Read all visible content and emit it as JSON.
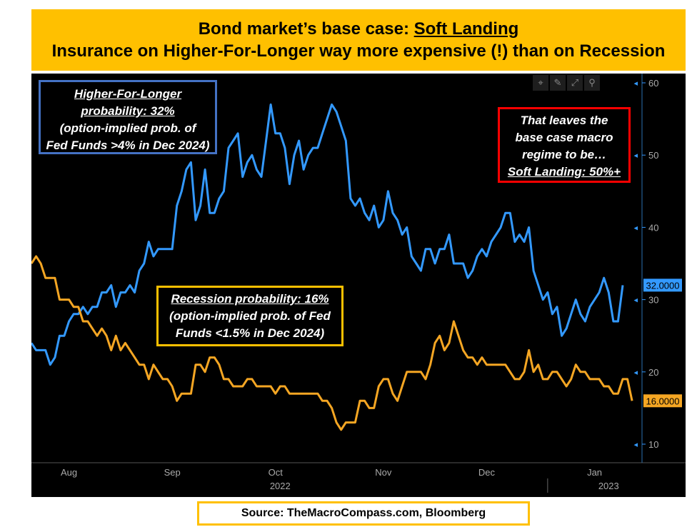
{
  "title": {
    "line1_prefix": "Bond market’s base case: ",
    "line1_emphasis": "Soft Landing",
    "line2": "Insurance on Higher-For-Longer way more expensive (!) than on Recession"
  },
  "annotations": {
    "higher_for_longer": {
      "line1": "Higher-For-Longer",
      "line2": "probability: 32%",
      "line3": "(option-implied prob. of",
      "line4": "Fed Funds >4% in Dec 2024)"
    },
    "recession": {
      "line1": "Recession probability: 16%",
      "line2": "(option-implied prob. of Fed",
      "line3": "Funds <1.5% in Dec 2024)"
    },
    "soft_landing": {
      "line1": "That leaves the",
      "line2": "base case macro",
      "line3": "regime to be…",
      "line4": "Soft Landing: 50%+"
    }
  },
  "toolbar": {
    "icons": [
      "crosshair-icon",
      "pen-icon",
      "expand-icon",
      "zoom-icon"
    ],
    "glyphs": [
      "⌖",
      "✎",
      "⤢",
      "⚲"
    ]
  },
  "source": "Source: TheMacroCompass.com, Bloomberg",
  "colors": {
    "banner": "#FFC000",
    "higher_for_longer": "#3399FF",
    "recession": "#F5A623",
    "hfl_box": "#4472C4",
    "soft_landing_box": "#FF0000",
    "background": "#000000"
  },
  "chart_data": {
    "type": "line",
    "title": "",
    "xlabel": "",
    "ylabel": "",
    "ylim": [
      10,
      60
    ],
    "yticks": [
      10,
      20,
      30,
      40,
      50,
      60
    ],
    "x_tick_labels": [
      "Aug",
      "Sep",
      "Oct",
      "Nov",
      "Dec",
      "Jan"
    ],
    "x_tick_positions": [
      8,
      30,
      52,
      75,
      97,
      120
    ],
    "x_year_labels": [
      {
        "label": "2022",
        "position": 53
      },
      {
        "label": "2023",
        "position": 123
      }
    ],
    "last_value_labels": [
      "32.0000",
      "16.0000"
    ],
    "grid": false,
    "series": [
      {
        "values": [
          24,
          23,
          23,
          23,
          21,
          22,
          25,
          25,
          27,
          28,
          28,
          29,
          28,
          29,
          29,
          31,
          31,
          32,
          29,
          31,
          31,
          32,
          31,
          34,
          35,
          38,
          36,
          37,
          37,
          37,
          37,
          43,
          45,
          48,
          49,
          41,
          43,
          48,
          42,
          42,
          44,
          45,
          51,
          52,
          53,
          47,
          49,
          50,
          48,
          47,
          52,
          57,
          53,
          53,
          51,
          46,
          50,
          52,
          48,
          50,
          51,
          51,
          53,
          55,
          57,
          56,
          54,
          52,
          44,
          43,
          44,
          42,
          41,
          43,
          40,
          41,
          45,
          42,
          41,
          39,
          40,
          36,
          35,
          34,
          37,
          37,
          35,
          37,
          37,
          39,
          35,
          35,
          35,
          33,
          34,
          36,
          37,
          36,
          38,
          39,
          40,
          42,
          42,
          38,
          39,
          38,
          40,
          34,
          32,
          30,
          31,
          28,
          29,
          25,
          26,
          28,
          30,
          28,
          27,
          29,
          30,
          31,
          33,
          31,
          27,
          27,
          32
        ]
      },
      {
        "values": [
          35,
          36,
          35,
          33,
          33,
          33,
          30,
          30,
          30,
          29,
          29,
          27,
          27,
          26,
          25,
          26,
          25,
          23,
          25,
          23,
          24,
          23,
          22,
          21,
          21,
          19,
          21,
          20,
          19,
          19,
          18,
          16,
          17,
          17,
          17,
          21,
          21,
          20,
          22,
          22,
          21,
          19,
          19,
          18,
          18,
          18,
          19,
          19,
          18,
          18,
          18,
          18,
          17,
          18,
          18,
          17,
          17,
          17,
          17,
          17,
          17,
          17,
          16,
          16,
          15,
          13,
          12,
          13,
          13,
          13,
          16,
          16,
          15,
          15,
          18,
          19,
          19,
          17,
          16,
          18,
          20,
          20,
          20,
          20,
          19,
          21,
          24,
          25,
          23,
          24,
          27,
          25,
          23,
          22,
          22,
          21,
          22,
          21,
          21,
          21,
          21,
          21,
          20,
          19,
          19,
          20,
          23,
          20,
          21,
          19,
          19,
          20,
          20,
          19,
          18,
          19,
          21,
          20,
          20,
          19,
          19,
          19,
          18,
          18,
          17,
          17,
          19,
          19,
          16
        ]
      }
    ]
  }
}
